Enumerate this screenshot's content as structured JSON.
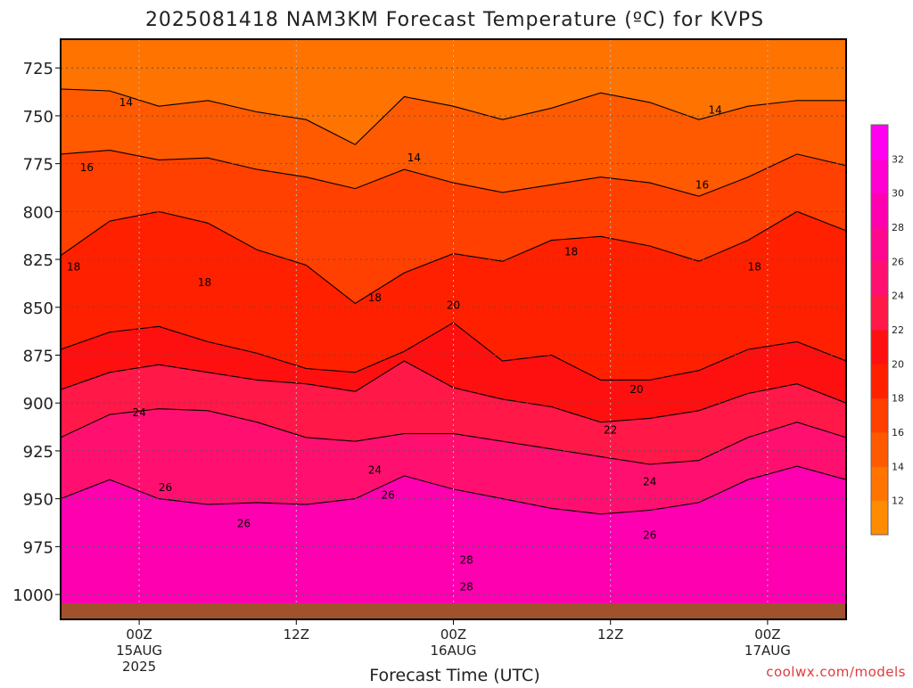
{
  "title": "2025081418 NAM3KM Forecast Temperature (ºC) for KVPS",
  "xlabel": "Forecast Time (UTC)",
  "credit": "coolwx.com/models",
  "colors": {
    "ground": "#a0522d",
    "contour_line": "#000000",
    "grid": "#555555",
    "credit": "#e03a3a"
  },
  "chart_data": {
    "type": "heatmap",
    "variable": "Temperature",
    "units": "ºC",
    "y_axis": {
      "quantity": "pressure",
      "units": "hPa",
      "reversed": true,
      "range": [
        1013,
        710
      ],
      "ticks": [
        725,
        750,
        775,
        800,
        825,
        850,
        875,
        900,
        925,
        950,
        975,
        1000
      ]
    },
    "x_axis": {
      "range_hours_utc": [
        "2025-08-14 18Z",
        "2025-08-17 06Z"
      ],
      "ticks": [
        {
          "time": "2025-08-15 00Z",
          "lines": [
            "00Z",
            "15AUG",
            "2025"
          ]
        },
        {
          "time": "2025-08-15 12Z",
          "lines": [
            "12Z"
          ]
        },
        {
          "time": "2025-08-16 00Z",
          "lines": [
            "00Z",
            "16AUG"
          ]
        },
        {
          "time": "2025-08-16 12Z",
          "lines": [
            "12Z"
          ]
        },
        {
          "time": "2025-08-17 00Z",
          "lines": [
            "00Z",
            "17AUG"
          ]
        }
      ]
    },
    "grid": true,
    "colorbar": {
      "placement": "right",
      "levels": [
        10,
        12,
        14,
        16,
        18,
        20,
        22,
        24,
        26,
        28,
        30,
        32,
        34
      ],
      "tick_labels": [
        "12",
        "14",
        "16",
        "18",
        "20",
        "22",
        "24",
        "26",
        "28",
        "30",
        "32"
      ],
      "colors": [
        "#ff8c00",
        "#ff7300",
        "#ff5a00",
        "#ff4000",
        "#ff2000",
        "#ff1010",
        "#ff1848",
        "#ff1070",
        "#ff0890",
        "#ff00b0",
        "#ff00d0",
        "#ff00f0"
      ]
    },
    "times": [
      "14/18Z",
      "15/00Z",
      "15/06Z",
      "15/12Z",
      "15/18Z",
      "16/00Z",
      "16/06Z",
      "16/12Z",
      "16/18Z",
      "17/00Z",
      "17/06Z"
    ],
    "pressure_levels": [
      725,
      750,
      775,
      800,
      825,
      850,
      875,
      900,
      925,
      950,
      975,
      1000
    ],
    "temperature_profile": [
      {
        "pressure": 725,
        "temp": 12.5
      },
      {
        "pressure": 750,
        "temp": 14.5
      },
      {
        "pressure": 775,
        "temp": 16.0
      },
      {
        "pressure": 800,
        "temp": 17.5
      },
      {
        "pressure": 825,
        "temp": 18.5
      },
      {
        "pressure": 850,
        "temp": 19.5
      },
      {
        "pressure": 875,
        "temp": 20.5
      },
      {
        "pressure": 900,
        "temp": 22.0
      },
      {
        "pressure": 925,
        "temp": 23.5
      },
      {
        "pressure": 950,
        "temp": 25.5
      },
      {
        "pressure": 975,
        "temp": 27.0
      },
      {
        "pressure": 1000,
        "temp": 29.0
      }
    ],
    "contours": [
      {
        "value": 14,
        "label": "14",
        "pressures": [
          736,
          737,
          745,
          742,
          748,
          752,
          765,
          740,
          745,
          752,
          746,
          738,
          743,
          752,
          745,
          742,
          742
        ]
      },
      {
        "value": 16,
        "label": "16",
        "pressures": [
          770,
          768,
          773,
          772,
          778,
          782,
          788,
          778,
          785,
          790,
          786,
          782,
          785,
          792,
          782,
          770,
          776
        ]
      },
      {
        "value": 18,
        "label": "18",
        "pressures": [
          823,
          805,
          800,
          806,
          820,
          828,
          848,
          832,
          822,
          826,
          815,
          813,
          818,
          826,
          815,
          800,
          810
        ]
      },
      {
        "value": 20,
        "label": "20",
        "pressures": [
          872,
          863,
          860,
          868,
          874,
          882,
          884,
          873,
          858,
          878,
          875,
          888,
          888,
          883,
          872,
          868,
          878
        ]
      },
      {
        "value": 22,
        "label": "22",
        "pressures": [
          893,
          884,
          880,
          884,
          888,
          890,
          894,
          878,
          892,
          898,
          902,
          910,
          908,
          904,
          895,
          890,
          900
        ]
      },
      {
        "value": 24,
        "label": "24",
        "pressures": [
          918,
          906,
          903,
          904,
          910,
          918,
          920,
          916,
          916,
          920,
          924,
          928,
          932,
          930,
          918,
          910,
          918
        ]
      },
      {
        "value": 26,
        "label": "26",
        "pressures": [
          950,
          940,
          950,
          953,
          952,
          953,
          950,
          938,
          945,
          950,
          955,
          958,
          956,
          952,
          940,
          933,
          940
        ]
      }
    ],
    "contour_labels": [
      {
        "text": "14",
        "time": "14/23Z",
        "pressure": 743
      },
      {
        "text": "14",
        "time": "15/21Z",
        "pressure": 772
      },
      {
        "text": "14",
        "time": "16/20Z",
        "pressure": 747
      },
      {
        "text": "16",
        "time": "14/20Z",
        "pressure": 777
      },
      {
        "text": "16",
        "time": "16/19Z",
        "pressure": 786
      },
      {
        "text": "18",
        "time": "14/19Z",
        "pressure": 829
      },
      {
        "text": "18",
        "time": "15/05Z",
        "pressure": 837
      },
      {
        "text": "18",
        "time": "15/18Z",
        "pressure": 845
      },
      {
        "text": "18",
        "time": "16/09Z",
        "pressure": 821
      },
      {
        "text": "18",
        "time": "16/23Z",
        "pressure": 829
      },
      {
        "text": "20",
        "time": "16/00Z",
        "pressure": 849
      },
      {
        "text": "20",
        "time": "16/14Z",
        "pressure": 893
      },
      {
        "text": "22",
        "time": "16/12Z",
        "pressure": 914
      },
      {
        "text": "24",
        "time": "15/00Z",
        "pressure": 905
      },
      {
        "text": "24",
        "time": "15/18Z",
        "pressure": 935
      },
      {
        "text": "24",
        "time": "16/15Z",
        "pressure": 941
      },
      {
        "text": "26",
        "time": "15/02Z",
        "pressure": 944
      },
      {
        "text": "26",
        "time": "15/08Z",
        "pressure": 963
      },
      {
        "text": "26",
        "time": "15/19Z",
        "pressure": 948
      },
      {
        "text": "26",
        "time": "16/15Z",
        "pressure": 969
      },
      {
        "text": "28",
        "time": "16/01Z",
        "pressure": 982
      },
      {
        "text": "28",
        "time": "16/01Z",
        "pressure": 996
      }
    ]
  }
}
